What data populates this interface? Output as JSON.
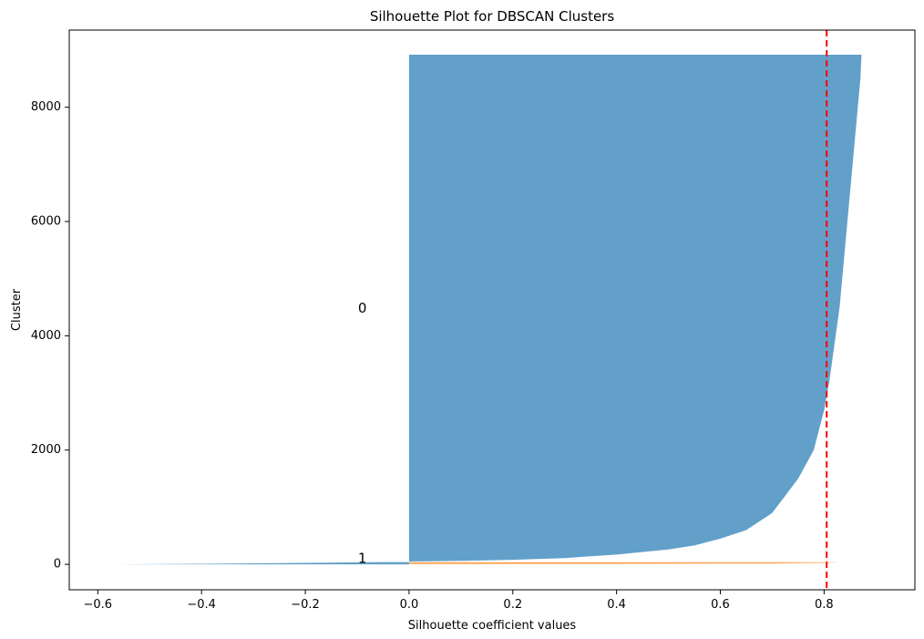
{
  "chart_data": {
    "type": "area",
    "title": "Silhouette Plot for DBSCAN Clusters",
    "xlabel": "Silhouette coefficient values",
    "ylabel": "Cluster",
    "xlim": [
      -0.655,
      0.975
    ],
    "ylim": [
      -445,
      9350
    ],
    "x_ticks": [
      -0.6,
      -0.4,
      -0.2,
      0.0,
      0.2,
      0.4,
      0.6,
      0.8
    ],
    "x_tick_labels": [
      "−0.6",
      "−0.4",
      "−0.2",
      "0.0",
      "0.2",
      "0.4",
      "0.6",
      "0.8"
    ],
    "y_ticks": [
      0,
      2000,
      4000,
      6000,
      8000
    ],
    "y_tick_labels": [
      "0",
      "2000",
      "4000",
      "6000",
      "8000"
    ],
    "grid": false,
    "legend": "none",
    "average_silhouette": 0.805,
    "series": [
      {
        "cluster_label": "0",
        "label_position": {
          "x": -0.09,
          "y": 4480
        },
        "color": "#1f77b4",
        "opacity": 0.7,
        "x": [
          -0.57,
          -0.4,
          -0.2,
          -0.05,
          0.0,
          0.0,
          0.1,
          0.2,
          0.3,
          0.4,
          0.5,
          0.55,
          0.6,
          0.65,
          0.7,
          0.75,
          0.78,
          0.8,
          0.81,
          0.83,
          0.85,
          0.87,
          0.872
        ],
        "y": [
          0,
          10,
          25,
          40,
          42,
          50,
          60,
          80,
          110,
          170,
          260,
          330,
          450,
          600,
          900,
          1500,
          2000,
          2700,
          3200,
          4500,
          6500,
          8500,
          8920
        ]
      },
      {
        "cluster_label": "1",
        "label_position": {
          "x": -0.09,
          "y": 100
        },
        "color": "#ff7f0e",
        "opacity": 0.7,
        "x": [
          0.0,
          0.4,
          0.7,
          0.8,
          0.83
        ],
        "y": [
          5,
          8,
          14,
          25,
          38
        ]
      }
    ],
    "reference_line": {
      "x": 0.805,
      "color": "#ff0000",
      "style": "dashed"
    }
  }
}
